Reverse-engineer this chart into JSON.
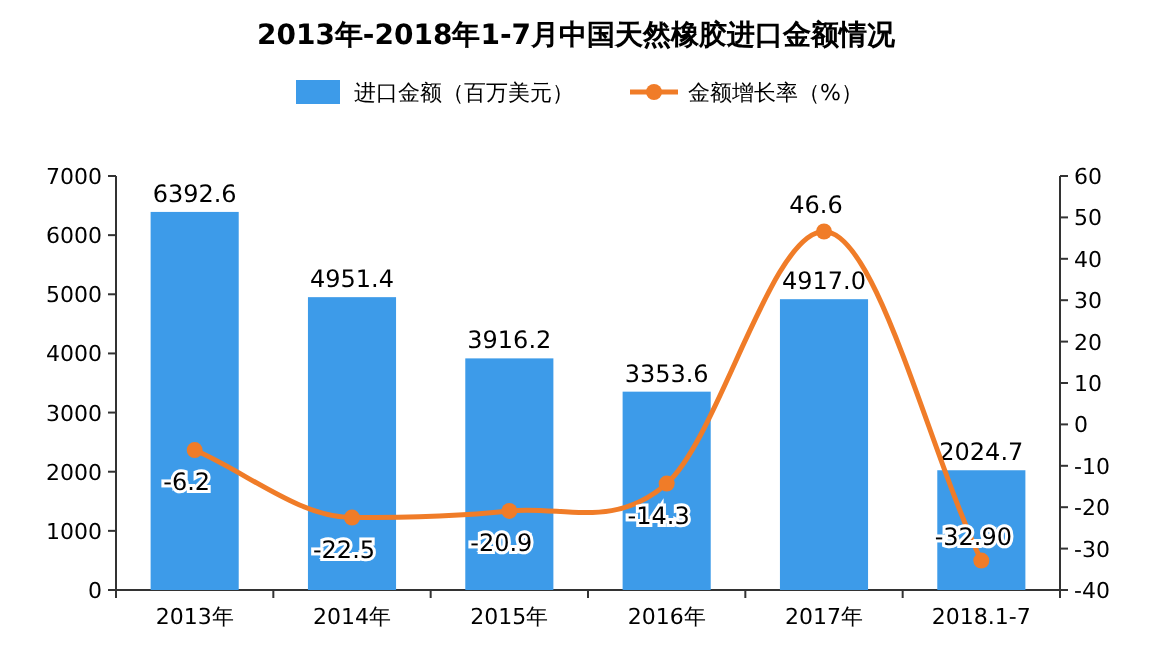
{
  "chart_data": {
    "type": "bar",
    "title": "2013年-2018年1-7月中国天然橡胶进口金额情况",
    "categories": [
      "2013年",
      "2014年",
      "2015年",
      "2016年",
      "2017年",
      "2018.1-7"
    ],
    "series": [
      {
        "name": "进口金额（百万美元）",
        "color": "#3d9be9",
        "values": [
          6392.6,
          4951.4,
          3916.2,
          3353.6,
          4917.0,
          2024.7
        ],
        "value_labels": [
          "6392.6",
          "4951.4",
          "3916.2",
          "3353.6",
          "4917.0",
          "2024.7"
        ]
      },
      {
        "name": "金额增长率（%）",
        "type": "line",
        "axis": "y2",
        "color": "#f07c28",
        "marker": "circle",
        "values": [
          -6.2,
          -22.5,
          -20.9,
          -14.3,
          46.6,
          -32.9
        ],
        "value_labels": [
          "-6.2",
          "-22.5",
          "-20.9",
          "-14.3",
          "46.6",
          "-32.90"
        ]
      }
    ],
    "ylim": [
      0,
      7000
    ],
    "yticks": [
      0,
      1000,
      2000,
      3000,
      4000,
      5000,
      6000,
      7000
    ],
    "y2lim": [
      -40,
      60
    ],
    "y2ticks": [
      -40,
      -30,
      -20,
      -10,
      0,
      10,
      20,
      30,
      40,
      50,
      60
    ],
    "legend": "top",
    "grid": false
  }
}
